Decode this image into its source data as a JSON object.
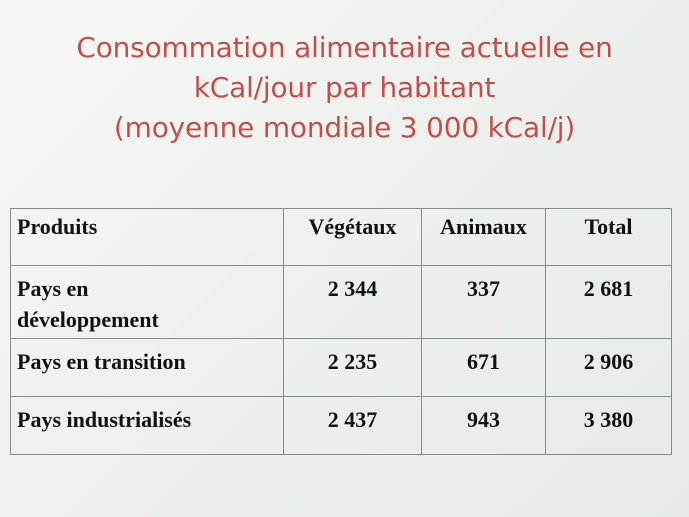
{
  "title": {
    "line1": "Consommation alimentaire actuelle en",
    "line2": "kCal/jour par habitant",
    "line3": "(moyenne mondiale 3 000 kCal/j)"
  },
  "table": {
    "headers": [
      "Produits",
      "Végétaux",
      "Animaux",
      "Total"
    ],
    "rows": [
      {
        "label_line1": "Pays en",
        "label_line2": "développement",
        "vegetaux": "2 344",
        "animaux": "337",
        "total": "2 681"
      },
      {
        "label": "Pays en transition",
        "vegetaux": "2 235",
        "animaux": "671",
        "total": "2 906"
      },
      {
        "label": "Pays industrialisés",
        "vegetaux": "2 437",
        "animaux": "943",
        "total": "3 380"
      }
    ]
  },
  "colors": {
    "title": "#c0504d",
    "text": "#111111",
    "border": "#8a8a8a"
  }
}
